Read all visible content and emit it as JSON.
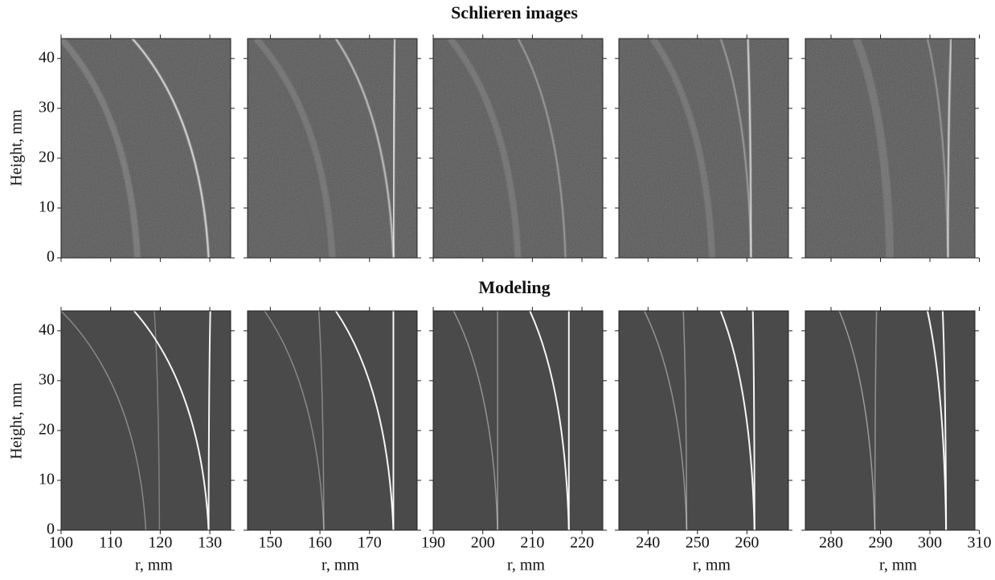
{
  "rows": [
    {
      "title": "Schlieren images",
      "ylabel": "Height, mm",
      "ylim": [
        0,
        44
      ],
      "yticks": [
        0,
        10,
        20,
        30,
        40
      ],
      "panels": [
        {
          "xlim": [
            100,
            134.2
          ],
          "xticks": [
            100,
            110,
            120,
            130
          ]
        },
        {
          "xlim": [
            145.4,
            179.6
          ],
          "xticks": [
            150,
            160,
            170
          ]
        },
        {
          "xlim": [
            190,
            224.2
          ],
          "xticks": [
            190,
            200,
            210,
            220
          ]
        },
        {
          "xlim": [
            234.1,
            268.4
          ],
          "xticks": [
            240,
            250,
            260
          ]
        },
        {
          "xlim": [
            274.8,
            309.1
          ],
          "xticks": [
            280,
            290,
            300,
            310
          ]
        }
      ]
    },
    {
      "title": "Modeling",
      "ylabel": "Height, mm",
      "ylim": [
        0,
        44
      ],
      "yticks": [
        0,
        10,
        20,
        30,
        40
      ],
      "panels": [
        {
          "xlim": [
            100,
            134.2
          ],
          "xticks": [
            100,
            110,
            120,
            130
          ],
          "xlabel": "r, mm"
        },
        {
          "xlim": [
            145.4,
            179.6
          ],
          "xticks": [
            150,
            160,
            170
          ],
          "xlabel": "r, mm"
        },
        {
          "xlim": [
            190,
            224.2
          ],
          "xticks": [
            190,
            200,
            210,
            220
          ],
          "xlabel": "r, mm"
        },
        {
          "xlim": [
            234.1,
            268.4
          ],
          "xticks": [
            240,
            250,
            260
          ],
          "xlabel": "r, mm"
        },
        {
          "xlim": [
            274.8,
            309.1
          ],
          "xticks": [
            280,
            290,
            300,
            310
          ],
          "xlabel": "r, mm"
        }
      ]
    }
  ]
}
